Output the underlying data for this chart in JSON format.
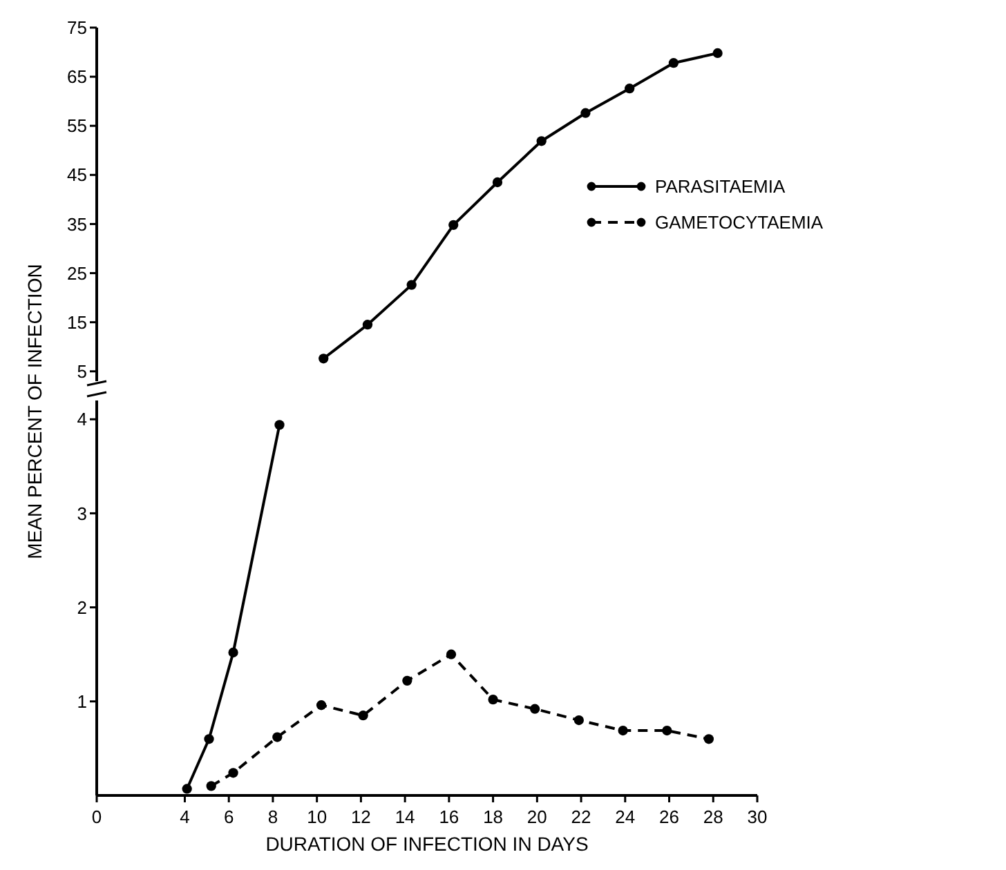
{
  "chart_data": [
    {
      "type": "line",
      "xlim": [
        0,
        30
      ],
      "ylim": [
        3,
        75
      ],
      "yticks": [
        5,
        15,
        25,
        35,
        45,
        55,
        65,
        75
      ],
      "tick_labels": "y",
      "marker": "circle",
      "grid": false,
      "legend": false,
      "series": [
        {
          "color": "#000000",
          "line_style": "solid",
          "x": [
            10.3,
            12.3,
            14.3,
            16.2,
            18.2,
            20.2,
            22.2,
            24.2,
            26.2,
            28.2
          ],
          "values": [
            7.6,
            14.5,
            22.6,
            34.8,
            43.5,
            51.9,
            57.6,
            62.6,
            67.8,
            69.8
          ]
        }
      ]
    },
    {
      "type": "line",
      "xlabel": "DURATION OF INFECTION IN DAYS",
      "ylabel": "MEAN PERCENT OF INFECTION",
      "xlim": [
        0,
        30
      ],
      "xticks": [
        0,
        4,
        6,
        8,
        10,
        12,
        14,
        16,
        18,
        20,
        22,
        24,
        26,
        28,
        30
      ],
      "ylim": [
        0,
        4.2
      ],
      "yticks": [
        1,
        2,
        3,
        4
      ],
      "marker": "circle",
      "grid": false,
      "legend": "top right",
      "series": [
        {
          "name": "PARASITAEMIA",
          "color": "#000000",
          "line_style": "solid",
          "x": [
            4.1,
            5.1,
            6.2,
            8.3
          ],
          "values": [
            0.07,
            0.6,
            1.52,
            3.94
          ]
        },
        {
          "name": "GAMETOCYTAEMIA",
          "color": "#000000",
          "line_style": "dashed",
          "x": [
            5.2,
            6.2,
            8.2,
            10.2,
            12.1,
            14.1,
            16.1,
            18,
            19.9,
            21.9,
            23.9,
            25.9,
            27.8
          ],
          "values": [
            0.1,
            0.24,
            0.62,
            0.96,
            0.85,
            1.22,
            1.5,
            1.02,
            0.92,
            0.8,
            0.69,
            0.69,
            0.6
          ]
        }
      ]
    }
  ]
}
